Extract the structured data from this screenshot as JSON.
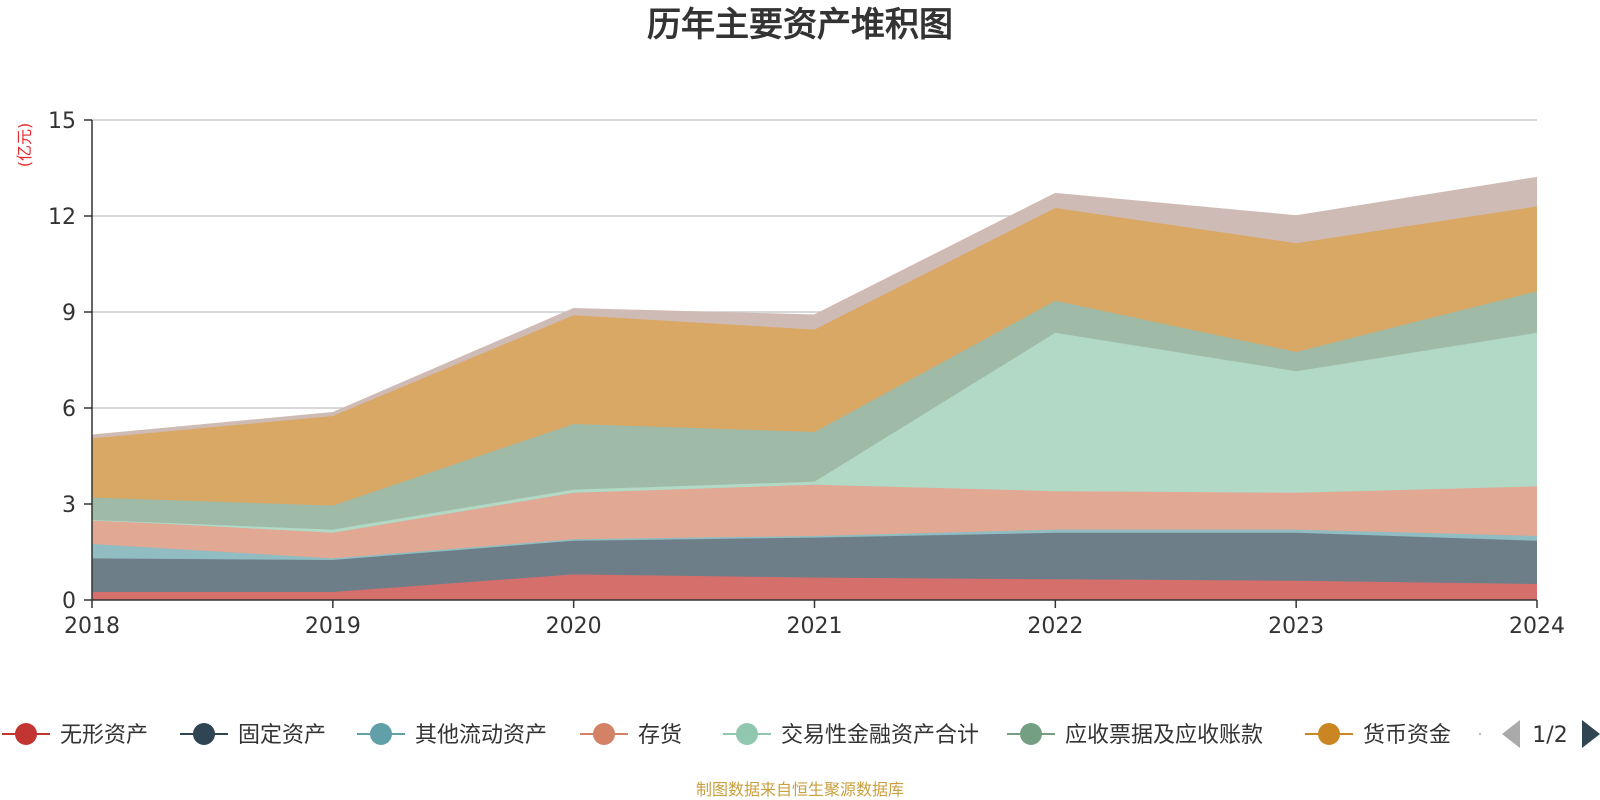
{
  "chart_data": {
    "type": "area",
    "stacked": true,
    "title": "历年主要资产堆积图",
    "ylabel": "(亿元)",
    "x": [
      "2018",
      "2019",
      "2020",
      "2021",
      "2022",
      "2023",
      "2024"
    ],
    "ylim": [
      0,
      15
    ],
    "yticks": [
      0,
      3,
      6,
      9,
      12,
      15
    ],
    "grid": true,
    "legend_position": "bottom",
    "series": [
      {
        "name": "无形资产",
        "color": "#c23531",
        "area_color": "#d46f6c",
        "values": [
          0.25,
          0.25,
          0.8,
          0.7,
          0.65,
          0.6,
          0.5
        ]
      },
      {
        "name": "固定资产",
        "color": "#2f4554",
        "area_color": "#6e7e88",
        "values": [
          1.05,
          1.0,
          1.05,
          1.25,
          1.45,
          1.5,
          1.35
        ]
      },
      {
        "name": "其他流动资产",
        "color": "#61a0a8",
        "area_color": "#90bcc2",
        "values": [
          0.45,
          0.05,
          0.05,
          0.05,
          0.1,
          0.1,
          0.15
        ]
      },
      {
        "name": "存货",
        "color": "#d48265",
        "area_color": "#e1a893",
        "values": [
          0.75,
          0.8,
          1.45,
          1.6,
          1.2,
          1.15,
          1.55
        ]
      },
      {
        "name": "交易性金融资产合计",
        "color": "#91c7ae",
        "area_color": "#b2d8c6",
        "values": [
          0.0,
          0.1,
          0.1,
          0.1,
          4.95,
          3.8,
          4.8
        ]
      },
      {
        "name": "应收票据及应收账款",
        "color": "#749f83",
        "area_color": "#9fbaa7",
        "values": [
          0.7,
          0.75,
          2.05,
          1.55,
          1.0,
          0.6,
          1.3
        ]
      },
      {
        "name": "货币资金",
        "color": "#ca8622",
        "area_color": "#d9a864",
        "values": [
          1.85,
          2.8,
          3.4,
          3.2,
          2.9,
          3.4,
          2.65
        ]
      },
      {
        "name": "",
        "color": "#bda29a",
        "area_color": "#cfbbb5",
        "values": [
          0.1,
          0.1,
          0.2,
          0.45,
          0.45,
          0.85,
          0.9
        ]
      }
    ]
  },
  "legend": {
    "pager": "1/2",
    "prev_icon": "triangle-left-icon",
    "next_icon": "triangle-right-icon"
  },
  "footer": {
    "source": "制图数据来自恒生聚源数据库"
  }
}
